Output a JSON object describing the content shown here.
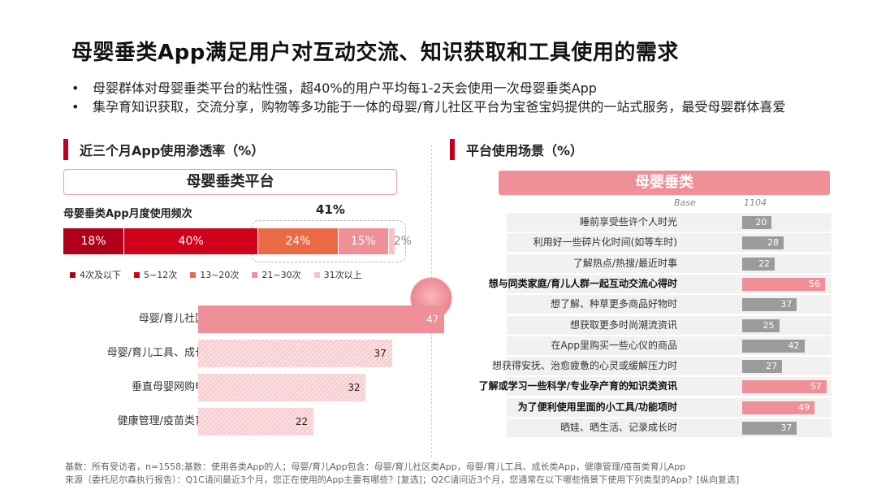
{
  "title": "母婴垂类App满足用户对互动交流、知识获取和工具使用的需求",
  "bullets": [
    "母婴群体对母婴垂类平台的粘性强，超40%的用户平均每1-2天会使用一次母婴垂类App",
    "集孕育知识获取，交流分享，购物等多功能于一体的母婴/育儿社区平台为宝爸宝妈提供的一站式服务，最受母婴群体喜爱"
  ],
  "left_section": {
    "heading": "近三个月App使用渗透率（%）",
    "banner": "母婴垂类平台",
    "freq_label": "母婴垂类App月度使用频次",
    "highlight_pct": "41%"
  },
  "right_section": {
    "heading": "平台使用场景（%）",
    "banner": "母婴垂类",
    "base_label": "Base",
    "base_value": "1104"
  },
  "colors": {
    "dark_red": "#b1001a",
    "red": "#d0021b",
    "orange": "#ea6a45",
    "pink": "#ef8f97",
    "light_pink": "#f6c3c7",
    "pink_hatched": "#f3b7bc",
    "gray": "#9b9b9b",
    "accent": "#c1001f"
  },
  "chart_data": [
    {
      "type": "bar",
      "orientation": "horizontal-stacked",
      "title": "母婴垂类App月度使用频次",
      "series": [
        {
          "name": "4次及以下",
          "values": [
            18
          ],
          "label": "18%"
        },
        {
          "name": "5~12次",
          "values": [
            40
          ],
          "label": "40%"
        },
        {
          "name": "13~20次",
          "values": [
            24
          ],
          "label": "24%"
        },
        {
          "name": "21~30次",
          "values": [
            15
          ],
          "label": "15%"
        },
        {
          "name": "31次以上",
          "values": [
            2
          ],
          "label": "2%"
        }
      ]
    },
    {
      "type": "bar",
      "orientation": "horizontal",
      "title": "近三个月App使用渗透率（%）",
      "categories": [
        "母婴/育儿社区类",
        "母婴/育儿工具、成长类",
        "垂直母婴网购电商",
        "健康管理/疫苗类育儿"
      ],
      "values": [
        47,
        37,
        32,
        22
      ],
      "value_labels": [
        "47",
        "37",
        "32",
        "22"
      ],
      "highlight": [
        true,
        false,
        false,
        false
      ],
      "xlim": [
        0,
        100
      ]
    },
    {
      "type": "bar",
      "orientation": "horizontal",
      "title": "平台使用场景（%）",
      "categories": [
        "睡前享受些许个人时光",
        "利用好一些碎片化时间(如等车时)",
        "了解热点/热搜/最近时事",
        "想与同类家庭/育儿人群一起互动交流心得时",
        "想了解、种草更多商品好物时",
        "想获取更多时尚潮流资讯",
        "在App里购买一些心仪的商品",
        "想获得安抚、治愈疲惫的心灵或缓解压力时",
        "了解或学习一些科学/专业孕产育的知识类资讯",
        "为了便利使用里面的小工具/功能项时",
        "晒娃、晒生活、记录成长时"
      ],
      "values": [
        20,
        28,
        22,
        56,
        37,
        25,
        42,
        27,
        57,
        49,
        37
      ],
      "value_labels": [
        "20",
        "28",
        "22",
        "56",
        "37",
        "25",
        "42",
        "27",
        "57",
        "49",
        "37"
      ],
      "highlight": [
        false,
        false,
        false,
        true,
        false,
        false,
        false,
        false,
        true,
        true,
        false
      ],
      "xlim": [
        0,
        100
      ]
    }
  ],
  "footer": {
    "line1": "基数：所有受访者，n=1558;基数：使用各类App的人；母婴/育儿App包含：母婴/育儿社区类App，母婴/育儿工具、成长类App，健康管理/疫苗类育儿App",
    "line2": "来源（委托尼尔森执行报告）：Q1C请问最近3个月，您正在使用的App主要有哪些？[复选]；Q2C请问近3个月，您通常在以下哪些情景下使用下列类型的App？[纵向复选]"
  }
}
